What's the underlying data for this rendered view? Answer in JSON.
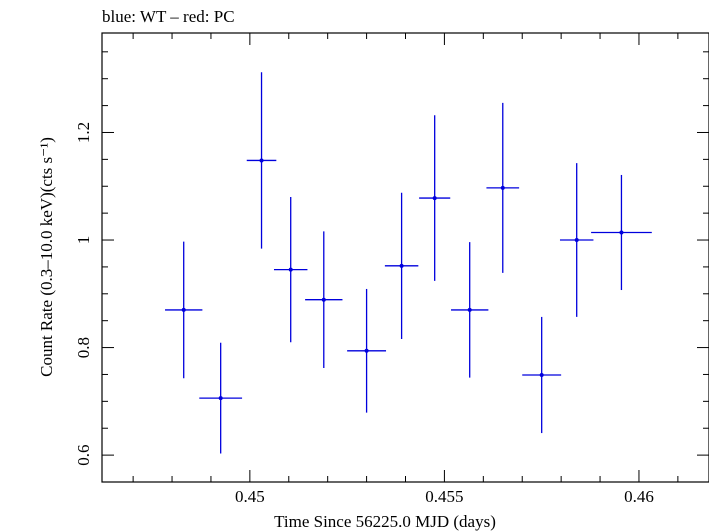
{
  "chart_data": {
    "type": "scatter",
    "title": "blue: WT – red: PC",
    "xlabel": "Time Since 56225.0 MJD (days)",
    "ylabel": "Count Rate (0.3–10.0 keV)(cts s⁻¹)",
    "xlim": [
      0.4462,
      0.4618
    ],
    "ylim": [
      0.55,
      1.385
    ],
    "x_ticks": [
      {
        "value": 0.45,
        "label": "0.45"
      },
      {
        "value": 0.455,
        "label": "0.455"
      },
      {
        "value": 0.46,
        "label": "0.46"
      }
    ],
    "y_ticks": [
      {
        "value": 0.6,
        "label": "0.6"
      },
      {
        "value": 0.8,
        "label": "0.8"
      },
      {
        "value": 1.0,
        "label": "1"
      },
      {
        "value": 1.2,
        "label": "1.2"
      }
    ],
    "series": [
      {
        "name": "WT",
        "color": "#0000dd",
        "points": [
          {
            "x": 0.4483,
            "y": 0.87,
            "xerr": 0.00048,
            "yerr_lo": 0.127,
            "yerr_hi": 0.127
          },
          {
            "x": 0.44925,
            "y": 0.706,
            "xerr": 0.00055,
            "yerr_lo": 0.103,
            "yerr_hi": 0.103
          },
          {
            "x": 0.4503,
            "y": 1.148,
            "xerr": 0.00038,
            "yerr_lo": 0.164,
            "yerr_hi": 0.164
          },
          {
            "x": 0.45105,
            "y": 0.945,
            "xerr": 0.00043,
            "yerr_lo": 0.135,
            "yerr_hi": 0.135
          },
          {
            "x": 0.4519,
            "y": 0.889,
            "xerr": 0.00048,
            "yerr_lo": 0.127,
            "yerr_hi": 0.127
          },
          {
            "x": 0.453,
            "y": 0.794,
            "xerr": 0.0005,
            "yerr_lo": 0.115,
            "yerr_hi": 0.115
          },
          {
            "x": 0.4539,
            "y": 0.952,
            "xerr": 0.00043,
            "yerr_lo": 0.136,
            "yerr_hi": 0.136
          },
          {
            "x": 0.45475,
            "y": 1.078,
            "xerr": 0.0004,
            "yerr_lo": 0.154,
            "yerr_hi": 0.154
          },
          {
            "x": 0.45565,
            "y": 0.87,
            "xerr": 0.00048,
            "yerr_lo": 0.126,
            "yerr_hi": 0.126
          },
          {
            "x": 0.4565,
            "y": 1.097,
            "xerr": 0.00042,
            "yerr_lo": 0.158,
            "yerr_hi": 0.158
          },
          {
            "x": 0.4575,
            "y": 0.749,
            "xerr": 0.0005,
            "yerr_lo": 0.108,
            "yerr_hi": 0.108
          },
          {
            "x": 0.4584,
            "y": 1.0,
            "xerr": 0.00043,
            "yerr_lo": 0.143,
            "yerr_hi": 0.143
          },
          {
            "x": 0.45955,
            "y": 1.014,
            "xerr": 0.00078,
            "yerr_lo": 0.107,
            "yerr_hi": 0.107
          }
        ]
      }
    ],
    "grid": false,
    "legend": "none"
  }
}
